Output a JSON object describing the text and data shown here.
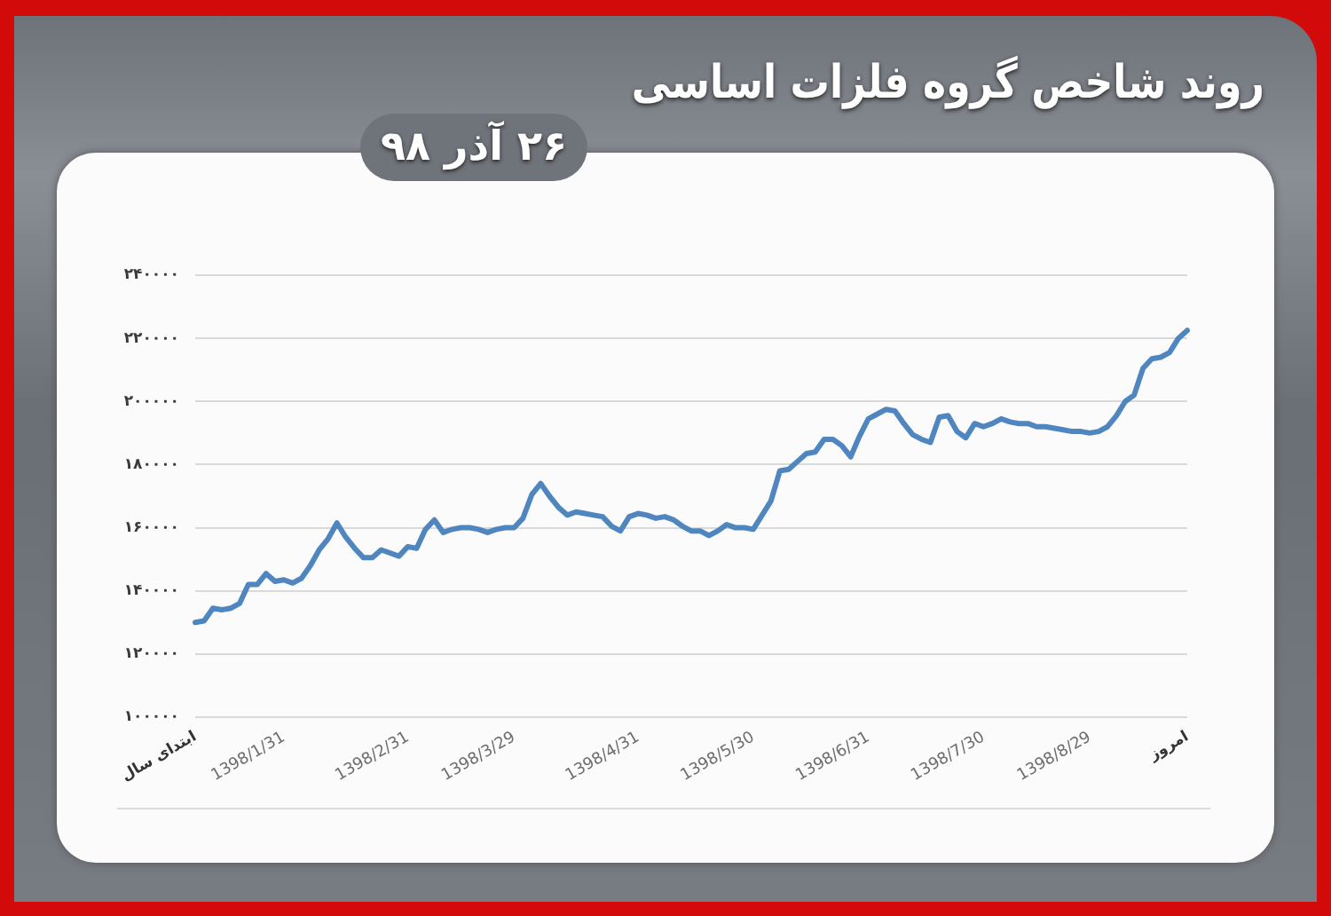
{
  "chart_data": {
    "type": "line",
    "title": "روند شاخص گروه فلزات اساسی",
    "subtitle": "۲۶ آذر ۹۸",
    "categories": [
      "ابتدای سال",
      null,
      null,
      null,
      null,
      null,
      null,
      null,
      null,
      null,
      "1398/1/31",
      null,
      null,
      null,
      null,
      null,
      null,
      null,
      null,
      null,
      null,
      null,
      null,
      null,
      "1398/2/31",
      null,
      null,
      null,
      null,
      null,
      null,
      null,
      null,
      null,
      null,
      null,
      "1398/3/29",
      null,
      null,
      null,
      null,
      null,
      null,
      null,
      null,
      null,
      null,
      null,
      null,
      null,
      "1398/4/31",
      null,
      null,
      null,
      null,
      null,
      null,
      null,
      null,
      null,
      null,
      null,
      null,
      "1398/5/30",
      null,
      null,
      null,
      null,
      null,
      null,
      null,
      null,
      null,
      null,
      null,
      null,
      "1398/6/31",
      null,
      null,
      null,
      null,
      null,
      null,
      null,
      null,
      null,
      null,
      null,
      null,
      "1398/7/30",
      null,
      null,
      null,
      null,
      null,
      null,
      null,
      null,
      null,
      null,
      null,
      "1398/8/29",
      null,
      null,
      null,
      null,
      null,
      null,
      null,
      null,
      null,
      null,
      "امروز"
    ],
    "series": [
      {
        "color": "#4f86c0",
        "values": [
          130000,
          130500,
          134500,
          134000,
          134500,
          136000,
          142000,
          142000,
          145500,
          143000,
          143500,
          142500,
          144000,
          148000,
          153000,
          156500,
          161500,
          157000,
          153500,
          150500,
          150500,
          153000,
          152000,
          151000,
          154000,
          153500,
          159500,
          162500,
          158500,
          159500,
          160000,
          160000,
          159500,
          158500,
          159500,
          160000,
          160000,
          163000,
          170500,
          174000,
          170000,
          166500,
          164000,
          165000,
          164500,
          164000,
          163500,
          160500,
          159000,
          163500,
          164500,
          164000,
          163000,
          163500,
          162500,
          160500,
          159000,
          159000,
          157500,
          159000,
          161000,
          160000,
          160000,
          159500,
          164000,
          168500,
          178000,
          178500,
          181000,
          183500,
          184000,
          188000,
          188000,
          186000,
          182500,
          189000,
          194500,
          196000,
          197500,
          197000,
          193000,
          189500,
          188000,
          187000,
          195000,
          195500,
          190500,
          188500,
          193000,
          192000,
          193000,
          194500,
          193500,
          193000,
          193000,
          192000,
          192000,
          191500,
          191000,
          190500,
          190500,
          190000,
          190500,
          192000,
          195500,
          200000,
          202000,
          210500,
          213500,
          214000,
          215500,
          220000,
          222500
        ]
      }
    ],
    "ylim": [
      100000,
      240000
    ],
    "yticks": [
      {
        "value": 100000,
        "label": "۱۰۰۰۰۰"
      },
      {
        "value": 120000,
        "label": "۱۲۰۰۰۰"
      },
      {
        "value": 140000,
        "label": "۱۴۰۰۰۰"
      },
      {
        "value": 160000,
        "label": "۱۶۰۰۰۰"
      },
      {
        "value": 180000,
        "label": "۱۸۰۰۰۰"
      },
      {
        "value": 200000,
        "label": "۲۰۰۰۰۰"
      },
      {
        "value": 220000,
        "label": "۲۲۰۰۰۰"
      },
      {
        "value": 240000,
        "label": "۲۴۰۰۰۰"
      }
    ],
    "grid": "y",
    "marker": "none",
    "line_style": "solid"
  }
}
